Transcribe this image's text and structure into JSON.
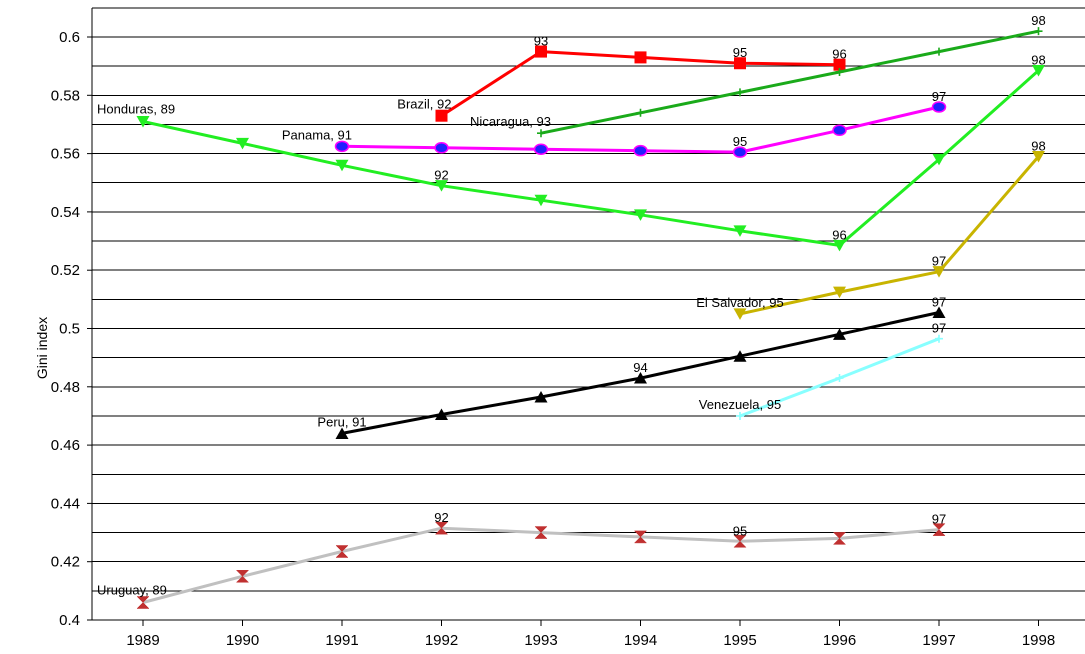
{
  "chart_data": {
    "type": "line",
    "title": "",
    "xlabel": "",
    "ylabel": "Gini index",
    "x": [
      1989,
      1990,
      1991,
      1992,
      1993,
      1994,
      1995,
      1996,
      1997,
      1998
    ],
    "xlim": [
      1988.5,
      1998.4
    ],
    "ylim": [
      0.4,
      0.61
    ],
    "yticks": [
      "0.4",
      "0.42",
      "0.44",
      "0.46",
      "0.48",
      "0.5",
      "0.52",
      "0.54",
      "0.56",
      "0.58",
      "0.6"
    ],
    "xticks": [
      "1989",
      "1990",
      "1991",
      "1992",
      "1993",
      "1994",
      "1995",
      "1996",
      "1997",
      "1998"
    ],
    "grid": "horizontal",
    "legend": "none",
    "series": [
      {
        "name": "Brazil",
        "color": "#ff0000",
        "marker": "square",
        "x": [
          1992,
          1993,
          1994,
          1995,
          1996
        ],
        "y": [
          0.573,
          0.595,
          0.593,
          0.591,
          0.5905
        ],
        "labels": [
          {
            "x": 1992,
            "text": "Brazil, 92",
            "pos": "left-above"
          },
          {
            "x": 1993,
            "text": "93",
            "pos": "above"
          },
          {
            "x": 1995,
            "text": "95",
            "pos": "above"
          },
          {
            "x": 1996,
            "text": "96",
            "pos": "above"
          }
        ]
      },
      {
        "name": "Nicaragua",
        "color": "#1aaa1a",
        "marker": "plus",
        "x": [
          1993,
          1994,
          1995,
          1996,
          1997,
          1998
        ],
        "y": [
          0.567,
          0.574,
          0.581,
          0.588,
          0.595,
          0.602
        ],
        "labels": [
          {
            "x": 1993,
            "text": "Nicaragua, 93",
            "pos": "left-above"
          },
          {
            "x": 1998,
            "text": "98",
            "pos": "above"
          }
        ]
      },
      {
        "name": "Honduras",
        "color": "#22ee22",
        "marker": "triangle-down",
        "x": [
          1989,
          1990,
          1991,
          1992,
          1993,
          1994,
          1995,
          1996,
          1997,
          1998
        ],
        "y": [
          0.571,
          0.5635,
          0.556,
          0.549,
          0.544,
          0.539,
          0.5335,
          0.5285,
          0.558,
          0.5885
        ],
        "labels": [
          {
            "x": 1989,
            "text": "Honduras, 89",
            "pos": "right-above"
          },
          {
            "x": 1992,
            "text": "92",
            "pos": "above"
          },
          {
            "x": 1996,
            "text": "96",
            "pos": "above"
          },
          {
            "x": 1998,
            "text": "98",
            "pos": "above"
          }
        ]
      },
      {
        "name": "Panama",
        "color": "#ff00ff",
        "marker": "circle",
        "x": [
          1991,
          1992,
          1993,
          1994,
          1995,
          1996,
          1997
        ],
        "y": [
          0.5625,
          0.562,
          0.5615,
          0.561,
          0.5605,
          0.568,
          0.576
        ],
        "labels": [
          {
            "x": 1991,
            "text": "Panama, 91",
            "pos": "left-above"
          },
          {
            "x": 1995,
            "text": "95",
            "pos": "above"
          },
          {
            "x": 1997,
            "text": "97",
            "pos": "above"
          }
        ]
      },
      {
        "name": "El Salvador",
        "color": "#c8b400",
        "marker": "triangle-down",
        "x": [
          1995,
          1996,
          1997,
          1998
        ],
        "y": [
          0.505,
          0.5125,
          0.5195,
          0.559
        ],
        "labels": [
          {
            "x": 1995,
            "text": "El Salvador, 95",
            "pos": "center-above"
          },
          {
            "x": 1997,
            "text": "97",
            "pos": "above"
          },
          {
            "x": 1998,
            "text": "98",
            "pos": "above"
          }
        ]
      },
      {
        "name": "Peru",
        "color": "#000000",
        "marker": "triangle-up",
        "x": [
          1991,
          1992,
          1993,
          1994,
          1995,
          1996,
          1997
        ],
        "y": [
          0.464,
          0.4705,
          0.4765,
          0.483,
          0.4905,
          0.498,
          0.5055
        ],
        "labels": [
          {
            "x": 1991,
            "text": "Peru, 91",
            "pos": "center-above"
          },
          {
            "x": 1994,
            "text": "94",
            "pos": "above"
          },
          {
            "x": 1997,
            "text": "97",
            "pos": "above"
          }
        ]
      },
      {
        "name": "Venezuela",
        "color": "#88ffff",
        "marker": "plus",
        "x": [
          1995,
          1996,
          1997
        ],
        "y": [
          0.47,
          0.483,
          0.4965
        ],
        "labels": [
          {
            "x": 1995,
            "text": "Venezuela, 95",
            "pos": "center-above"
          },
          {
            "x": 1997,
            "text": "97",
            "pos": "above"
          }
        ]
      },
      {
        "name": "Uruguay",
        "color": "#c0c0c0",
        "marker": "hourglass",
        "x": [
          1989,
          1990,
          1991,
          1992,
          1993,
          1994,
          1995,
          1996,
          1997
        ],
        "y": [
          0.406,
          0.415,
          0.4235,
          0.4315,
          0.43,
          0.4285,
          0.427,
          0.428,
          0.431
        ],
        "labels": [
          {
            "x": 1989,
            "text": "Uruguay, 89",
            "pos": "right-above"
          },
          {
            "x": 1992,
            "text": "92",
            "pos": "above"
          },
          {
            "x": 1995,
            "text": "95",
            "pos": "above"
          },
          {
            "x": 1997,
            "text": "97",
            "pos": "above"
          }
        ]
      }
    ]
  }
}
